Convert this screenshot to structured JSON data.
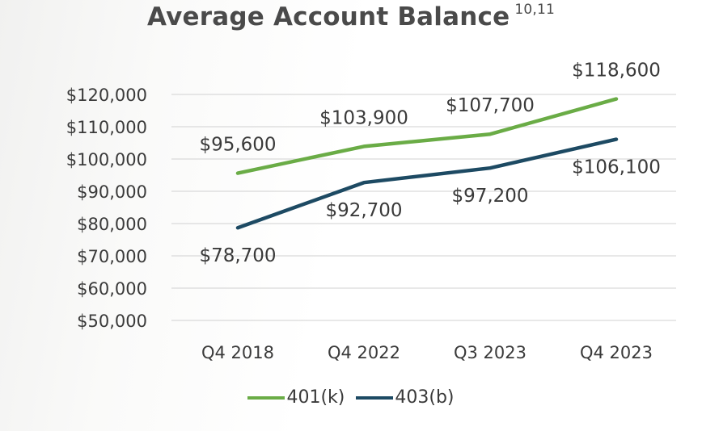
{
  "chart_data": {
    "type": "line",
    "title": "Average Account Balance",
    "title_superscript": "10,11",
    "categories": [
      "Q4 2018",
      "Q4 2022",
      "Q3 2023",
      "Q4 2023"
    ],
    "series": [
      {
        "name": "401(k)",
        "color": "#6aac46",
        "values": [
          95600,
          103900,
          107700,
          118600
        ],
        "labels": [
          "$95,600",
          "$103,900",
          "$107,700",
          "$118,600"
        ],
        "label_positions": [
          "above",
          "above",
          "above",
          "above"
        ]
      },
      {
        "name": "403(b)",
        "color": "#1d4a63",
        "values": [
          78700,
          92700,
          97200,
          106100
        ],
        "labels": [
          "$78,700",
          "$92,700",
          "$97,200",
          "$106,100"
        ],
        "label_positions": [
          "below",
          "below",
          "below",
          "below"
        ]
      }
    ],
    "ylim": [
      50000,
      120000
    ],
    "y_ticks": [
      50000,
      60000,
      70000,
      80000,
      90000,
      100000,
      110000,
      120000
    ],
    "y_tick_labels": [
      "$50,000",
      "$60,000",
      "$70,000",
      "$80,000",
      "$90,000",
      "$100,000",
      "$110,000",
      "$120,000"
    ],
    "xlabel": "",
    "ylabel": "",
    "grid": true,
    "legend_position": "bottom"
  }
}
